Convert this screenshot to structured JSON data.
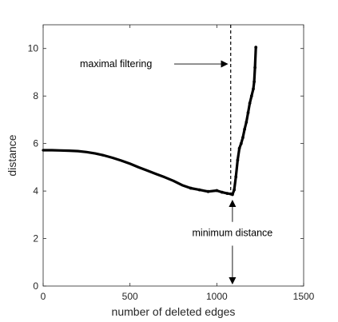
{
  "chart_data": {
    "type": "line",
    "title": "",
    "xlabel": "number of deleted edges",
    "ylabel": "distance",
    "xlim": [
      0,
      1500
    ],
    "ylim": [
      0,
      11
    ],
    "xticks": [
      0,
      500,
      1000,
      1500
    ],
    "yticks": [
      0,
      2,
      4,
      6,
      8,
      10
    ],
    "grid": false,
    "box": true,
    "series": [
      {
        "color": "#000000",
        "highlight_color": "#cc2255",
        "x": [
          0,
          50,
          100,
          150,
          200,
          250,
          300,
          350,
          400,
          450,
          500,
          550,
          600,
          650,
          700,
          750,
          800,
          850,
          900,
          950,
          1000,
          1030,
          1060,
          1080,
          1090,
          1100,
          1110,
          1120,
          1130,
          1140,
          1150,
          1160,
          1170,
          1180,
          1190,
          1200,
          1210,
          1215,
          1220,
          1225
        ],
        "y": [
          5.72,
          5.72,
          5.71,
          5.7,
          5.68,
          5.64,
          5.58,
          5.5,
          5.4,
          5.28,
          5.15,
          5.0,
          4.86,
          4.72,
          4.58,
          4.43,
          4.25,
          4.12,
          4.05,
          3.98,
          4.02,
          3.95,
          3.9,
          3.88,
          3.85,
          4.05,
          4.6,
          5.3,
          5.8,
          6.0,
          6.25,
          6.6,
          6.9,
          7.3,
          7.7,
          8.0,
          8.3,
          8.6,
          9.2,
          10.05
        ]
      }
    ],
    "reference_line": {
      "x": 1080,
      "style": "dashed"
    },
    "annotations": [
      {
        "text": "maximal filtering",
        "arrow_to": [
          1070,
          9.35
        ]
      },
      {
        "text": "minimum distance",
        "arrow_up_to": [
          1090,
          3.6
        ],
        "arrow_down_to": [
          1090,
          0.1
        ]
      }
    ]
  }
}
